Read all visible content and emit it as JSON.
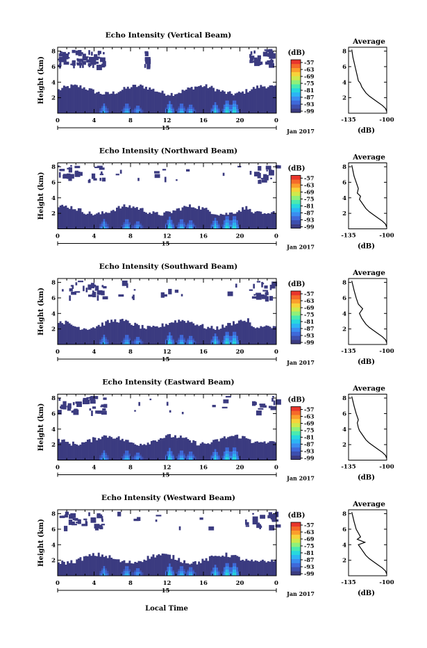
{
  "figure": {
    "xlabel": "Local Time",
    "date_label": "Jan 2017",
    "day_label": "15"
  },
  "colorbar": {
    "unit": "(dB)",
    "ticks": [
      "-57",
      "-63",
      "-69",
      "-75",
      "-81",
      "-87",
      "-93",
      "-99"
    ],
    "colors": [
      "#3b3b80",
      "#3d4fae",
      "#3f69d9",
      "#3a8ef0",
      "#2cb5f4",
      "#27d8de",
      "#4aeab0",
      "#8ff07a",
      "#cfe94d",
      "#f7d33a",
      "#fb9e2c",
      "#f56a2a",
      "#e8362c"
    ]
  },
  "chart_data": [
    {
      "type": "heatmap",
      "title": "Echo Intensity (Vertical Beam)",
      "ylabel": "Height (km)",
      "x_ticks": [
        "0",
        "4",
        "8",
        "12",
        "16",
        "20",
        "0"
      ],
      "y_ticks": [
        "2",
        "4",
        "6",
        "8"
      ],
      "xlim": [
        0,
        24
      ],
      "ylim": [
        0,
        8.5
      ],
      "colorbar_label": "(dB)",
      "solid_top_km": 3.0,
      "upper_patches": "top-left 0-5 h and top-right 21-24 h near 6.5-8.3 km",
      "average_profile": {
        "title": "Average",
        "xlabel": "(dB)",
        "x_ticks": [
          "-135",
          "-100"
        ],
        "y_ticks": [
          "2",
          "4",
          "6",
          "8"
        ],
        "xlim": [
          -135,
          -100
        ],
        "ylim": [
          0,
          8.5
        ],
        "x": [
          -98,
          -101,
          -104,
          -108,
          -112,
          -116,
          -119,
          -121,
          -123,
          -124,
          -126,
          -127,
          -128,
          -129,
          -130,
          -131,
          -132
        ],
        "y": [
          0.2,
          0.6,
          1.0,
          1.4,
          1.8,
          2.2,
          2.6,
          3.0,
          3.4,
          3.8,
          4.2,
          4.8,
          5.4,
          6.0,
          6.6,
          7.2,
          8.2
        ]
      }
    },
    {
      "type": "heatmap",
      "title": "Echo Intensity (Northward Beam)",
      "ylabel": "Height (km)",
      "x_ticks": [
        "0",
        "4",
        "8",
        "12",
        "16",
        "20",
        "0"
      ],
      "y_ticks": [
        "2",
        "4",
        "6",
        "8"
      ],
      "xlim": [
        0,
        24
      ],
      "ylim": [
        0,
        8.5
      ],
      "colorbar_label": "(dB)",
      "solid_top_km": 2.4,
      "upper_patches": "scattered 6-8.3 km",
      "average_profile": {
        "title": "Average",
        "xlabel": "(dB)",
        "x_ticks": [
          "-135",
          "-100"
        ],
        "y_ticks": [
          "2",
          "4",
          "6",
          "8"
        ],
        "xlim": [
          -135,
          -100
        ],
        "ylim": [
          0,
          8.5
        ],
        "x": [
          -98,
          -101,
          -104,
          -108,
          -112,
          -116,
          -119,
          -121,
          -123,
          -125,
          -124,
          -127,
          -126,
          -128,
          -130,
          -132
        ],
        "y": [
          0.2,
          0.6,
          1.0,
          1.4,
          1.8,
          2.2,
          2.6,
          3.0,
          3.4,
          3.8,
          4.2,
          4.6,
          5.2,
          6.0,
          6.8,
          8.2
        ]
      }
    },
    {
      "type": "heatmap",
      "title": "Echo Intensity (Southward Beam)",
      "ylabel": "Height (km)",
      "x_ticks": [
        "0",
        "4",
        "8",
        "12",
        "16",
        "20",
        "0"
      ],
      "y_ticks": [
        "2",
        "4",
        "6",
        "8"
      ],
      "xlim": [
        0,
        24
      ],
      "ylim": [
        0,
        8.5
      ],
      "colorbar_label": "(dB)",
      "solid_top_km": 2.6,
      "upper_patches": "scattered 6-8.3 km",
      "average_profile": {
        "title": "Average",
        "xlabel": "(dB)",
        "x_ticks": [
          "-135",
          "-100"
        ],
        "y_ticks": [
          "2",
          "4",
          "6",
          "8"
        ],
        "xlim": [
          -135,
          -100
        ],
        "ylim": [
          0,
          8.5
        ],
        "x": [
          -98,
          -101,
          -104,
          -108,
          -112,
          -116,
          -119,
          -121,
          -123,
          -125,
          -122,
          -126,
          -128,
          -130,
          -132
        ],
        "y": [
          0.2,
          0.6,
          1.0,
          1.4,
          1.8,
          2.2,
          2.6,
          3.0,
          3.4,
          4.0,
          4.6,
          5.2,
          6.0,
          7.0,
          8.2
        ]
      }
    },
    {
      "type": "heatmap",
      "title": "Echo Intensity (Eastward Beam)",
      "ylabel": "Height (km)",
      "x_ticks": [
        "0",
        "4",
        "8",
        "12",
        "16",
        "20",
        "0"
      ],
      "y_ticks": [
        "2",
        "4",
        "6",
        "8"
      ],
      "xlim": [
        0,
        24
      ],
      "ylim": [
        0,
        8.5
      ],
      "colorbar_label": "(dB)",
      "solid_top_km": 2.6,
      "upper_patches": "scattered 6-8.3 km",
      "average_profile": {
        "title": "Average",
        "xlabel": "(dB)",
        "x_ticks": [
          "-135",
          "-100"
        ],
        "y_ticks": [
          "2",
          "4",
          "6",
          "8"
        ],
        "xlim": [
          -135,
          -100
        ],
        "ylim": [
          0,
          8.5
        ],
        "x": [
          -98,
          -101,
          -104,
          -108,
          -112,
          -116,
          -119,
          -121,
          -123,
          -125,
          -126,
          -127,
          -126,
          -128,
          -130,
          -132
        ],
        "y": [
          0.2,
          0.6,
          1.0,
          1.4,
          1.8,
          2.2,
          2.6,
          3.0,
          3.4,
          3.8,
          4.2,
          4.8,
          5.2,
          6.0,
          7.0,
          8.2
        ]
      }
    },
    {
      "type": "heatmap",
      "title": "Echo Intensity (Westward Beam)",
      "ylabel": "Height (km)",
      "x_ticks": [
        "0",
        "4",
        "8",
        "12",
        "16",
        "20",
        "0"
      ],
      "y_ticks": [
        "2",
        "4",
        "6",
        "8"
      ],
      "xlim": [
        0,
        24
      ],
      "ylim": [
        0,
        8.5
      ],
      "colorbar_label": "(dB)",
      "solid_top_km": 2.2,
      "upper_patches": "scattered 6-8.3 km",
      "average_profile": {
        "title": "Average",
        "xlabel": "(dB)",
        "x_ticks": [
          "-135",
          "-100"
        ],
        "y_ticks": [
          "2",
          "4",
          "6",
          "8"
        ],
        "xlim": [
          -135,
          -100
        ],
        "ylim": [
          0,
          8.5
        ],
        "x": [
          -98,
          -101,
          -104,
          -108,
          -112,
          -116,
          -119,
          -121,
          -124,
          -126,
          -120,
          -127,
          -124,
          -128,
          -130,
          -132
        ],
        "y": [
          0.2,
          0.6,
          1.0,
          1.4,
          1.8,
          2.2,
          2.6,
          3.0,
          3.6,
          4.0,
          4.3,
          4.7,
          5.0,
          6.0,
          7.0,
          8.2
        ]
      }
    }
  ]
}
